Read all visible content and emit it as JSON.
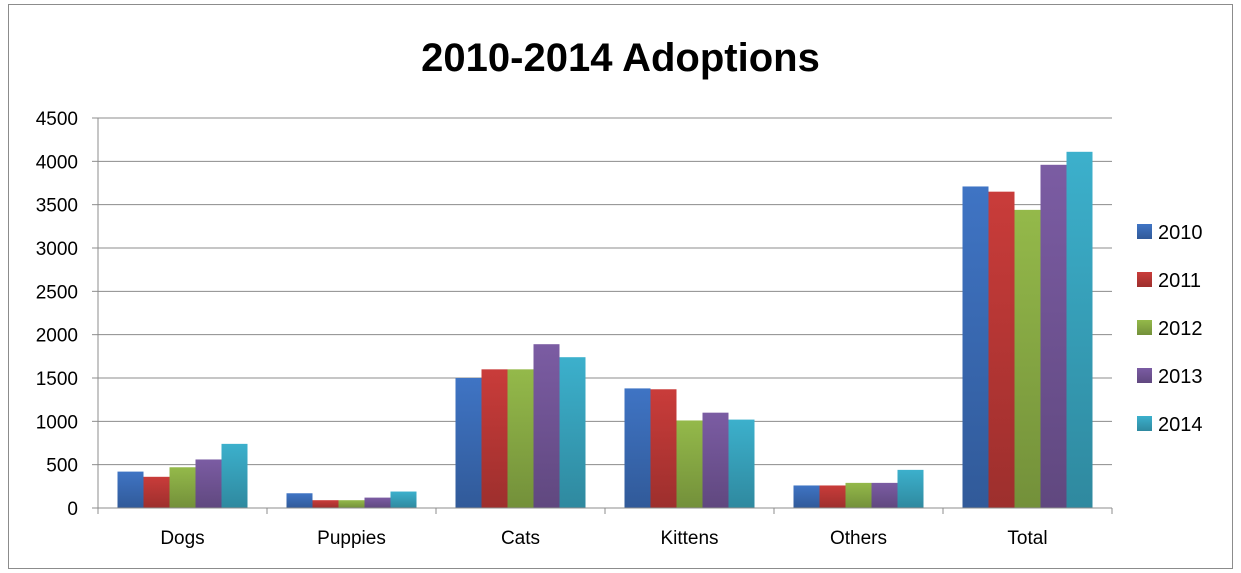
{
  "chart_data": {
    "type": "bar",
    "title": "2010-2014 Adoptions",
    "xlabel": "",
    "ylabel": "",
    "categories": [
      "Dogs",
      "Puppies",
      "Cats",
      "Kittens",
      "Others",
      "Total"
    ],
    "series": [
      {
        "name": "2010",
        "color": "#3f74c4",
        "values": [
          420,
          170,
          1500,
          1380,
          260,
          3710
        ]
      },
      {
        "name": "2011",
        "color": "#c93c3a",
        "values": [
          360,
          90,
          1600,
          1370,
          260,
          3650
        ]
      },
      {
        "name": "2012",
        "color": "#94b94a",
        "values": [
          470,
          90,
          1600,
          1010,
          290,
          3440
        ]
      },
      {
        "name": "2013",
        "color": "#7b5ca3",
        "values": [
          560,
          120,
          1890,
          1100,
          290,
          3960
        ]
      },
      {
        "name": "2014",
        "color": "#3cb0cc",
        "values": [
          740,
          190,
          1740,
          1020,
          440,
          4110
        ]
      }
    ],
    "ylim": [
      0,
      4500
    ],
    "yticks": [
      0,
      500,
      1000,
      1500,
      2000,
      2500,
      3000,
      3500,
      4000,
      4500
    ],
    "grid": true,
    "legend_position": "right"
  }
}
